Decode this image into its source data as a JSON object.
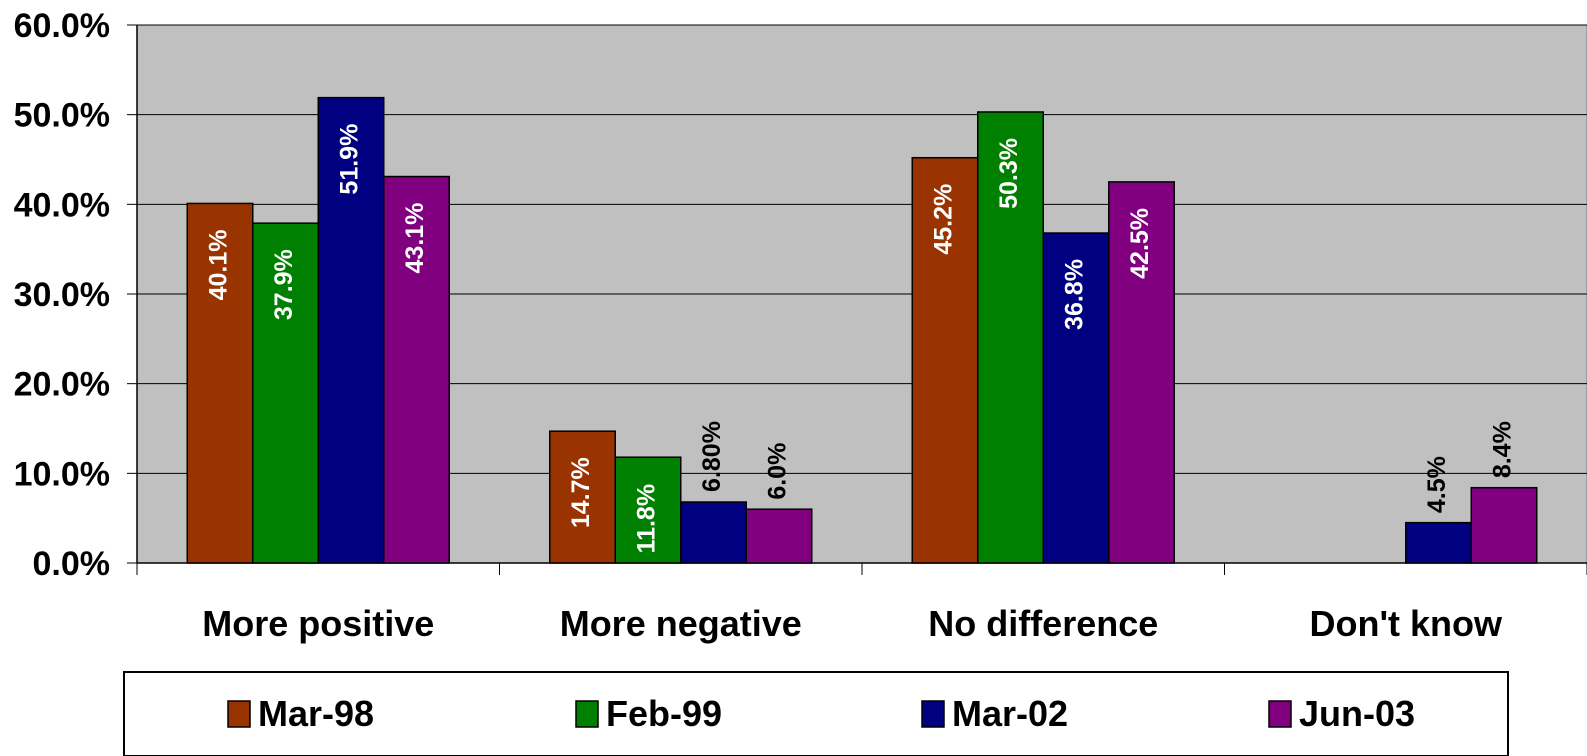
{
  "chart_data": {
    "type": "bar",
    "title": "",
    "xlabel": "",
    "ylabel": "",
    "ylim": [
      0,
      60
    ],
    "y_ticks": [
      "0.0%",
      "10.0%",
      "20.0%",
      "30.0%",
      "40.0%",
      "50.0%",
      "60.0%"
    ],
    "categories": [
      "More positive",
      "More negative",
      "No difference",
      "Don't know"
    ],
    "series": [
      {
        "name": "Mar-98",
        "color": "#993300",
        "values": [
          40.1,
          14.7,
          45.2,
          null
        ],
        "labels": [
          "40.1%",
          "14.7%",
          "45.2%",
          ""
        ]
      },
      {
        "name": "Feb-99",
        "color": "#008000",
        "values": [
          37.9,
          11.8,
          50.3,
          null
        ],
        "labels": [
          "37.9%",
          "11.8%",
          "50.3%",
          ""
        ]
      },
      {
        "name": "Mar-02",
        "color": "#000080",
        "values": [
          51.9,
          6.8,
          36.8,
          4.5
        ],
        "labels": [
          "51.9%",
          "6.80%",
          "36.8%",
          "4.5%"
        ]
      },
      {
        "name": "Jun-03",
        "color": "#800080",
        "values": [
          43.1,
          6.0,
          42.5,
          8.4
        ],
        "labels": [
          "43.1%",
          "6.0%",
          "42.5%",
          "8.4%"
        ]
      }
    ],
    "grid": true,
    "plot_background": "#c0c0c0",
    "legend_position": "bottom"
  }
}
